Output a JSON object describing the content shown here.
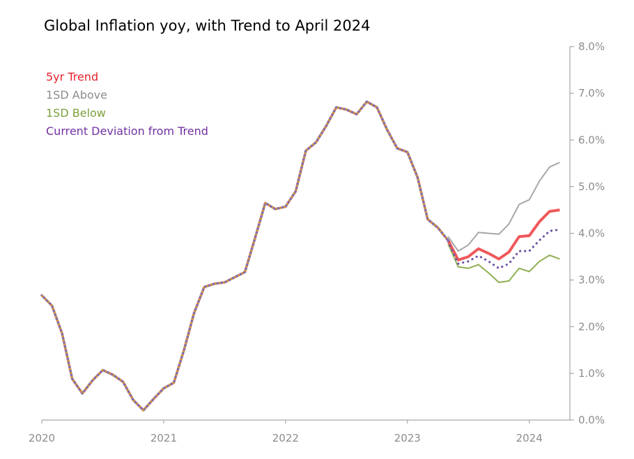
{
  "chart_data": {
    "type": "line",
    "title": "Global Inflation yoy, with Trend to April 2024",
    "xlabel": "",
    "ylabel": "",
    "ylim": [
      0,
      8
    ],
    "y_ticks": [
      0,
      1,
      2,
      3,
      4,
      5,
      6,
      7,
      8
    ],
    "y_tick_labels": [
      "0.0%",
      "1.0%",
      "2.0%",
      "3.0%",
      "4.0%",
      "5.0%",
      "6.0%",
      "7.0%",
      "8.0%"
    ],
    "y_axis_side": "right",
    "x_range": [
      "2020-01",
      "2024-05"
    ],
    "x_ticks": [
      "2020-01",
      "2021-01",
      "2022-01",
      "2023-01",
      "2024-01"
    ],
    "x_tick_labels": [
      "2020",
      "2021",
      "2022",
      "2023",
      "2024"
    ],
    "grid": false,
    "legend_position": "top-left",
    "colors": {
      "inflation_a": "#7f6ab0",
      "inflation_b": "#d4934a",
      "trend": "#f0585a",
      "above": "#a6a6a6",
      "below": "#8fb050",
      "deviation": "#7153a6",
      "axis": "#a6a6a6"
    },
    "inflation": {
      "x": [
        "2020-01",
        "2020-02",
        "2020-03",
        "2020-04",
        "2020-05",
        "2020-06",
        "2020-07",
        "2020-08",
        "2020-09",
        "2020-10",
        "2020-11",
        "2020-12",
        "2021-01",
        "2021-02",
        "2021-03",
        "2021-04",
        "2021-05",
        "2021-06",
        "2021-07",
        "2021-08",
        "2021-09",
        "2021-10",
        "2021-11",
        "2021-12",
        "2022-01",
        "2022-02",
        "2022-03",
        "2022-04",
        "2022-05",
        "2022-06",
        "2022-07",
        "2022-08",
        "2022-09",
        "2022-10",
        "2022-11",
        "2022-12",
        "2023-01",
        "2023-02",
        "2023-03",
        "2023-04",
        "2023-05"
      ],
      "values": [
        2.67,
        2.45,
        1.85,
        0.88,
        0.57,
        0.85,
        1.07,
        0.97,
        0.82,
        0.43,
        0.21,
        0.45,
        0.68,
        0.8,
        1.5,
        2.3,
        2.85,
        2.92,
        2.95,
        3.06,
        3.17,
        3.9,
        4.65,
        4.52,
        4.57,
        4.9,
        5.77,
        5.95,
        6.3,
        6.7,
        6.65,
        6.55,
        6.82,
        6.7,
        6.22,
        5.82,
        5.74,
        5.2,
        4.3,
        4.12,
        3.85
      ]
    },
    "series": [
      {
        "name": "5yr Trend",
        "x": [
          "2023-05",
          "2023-06",
          "2023-07",
          "2023-08",
          "2023-09",
          "2023-10",
          "2023-11",
          "2023-12",
          "2024-01",
          "2024-02",
          "2024-03",
          "2024-04"
        ],
        "values": [
          3.85,
          3.43,
          3.5,
          3.67,
          3.57,
          3.45,
          3.6,
          3.93,
          3.95,
          4.25,
          4.47,
          4.5
        ]
      },
      {
        "name": "1SD Above",
        "x": [
          "2023-05",
          "2023-06",
          "2023-07",
          "2023-08",
          "2023-09",
          "2023-10",
          "2023-11",
          "2023-12",
          "2024-01",
          "2024-02",
          "2024-03",
          "2024-04"
        ],
        "values": [
          3.93,
          3.62,
          3.75,
          4.02,
          4.0,
          3.98,
          4.2,
          4.62,
          4.72,
          5.12,
          5.42,
          5.52
        ]
      },
      {
        "name": "1SD Below",
        "x": [
          "2023-05",
          "2023-06",
          "2023-07",
          "2023-08",
          "2023-09",
          "2023-10",
          "2023-11",
          "2023-12",
          "2024-01",
          "2024-02",
          "2024-03",
          "2024-04"
        ],
        "values": [
          3.78,
          3.28,
          3.25,
          3.33,
          3.15,
          2.95,
          2.98,
          3.25,
          3.18,
          3.4,
          3.53,
          3.45
        ]
      },
      {
        "name": "Current Deviation from Trend",
        "x": [
          "2023-05",
          "2023-06",
          "2023-07",
          "2023-08",
          "2023-09",
          "2023-10",
          "2023-11",
          "2023-12",
          "2024-01",
          "2024-02",
          "2024-03",
          "2024-04"
        ],
        "values": [
          3.83,
          3.35,
          3.4,
          3.52,
          3.4,
          3.25,
          3.35,
          3.62,
          3.62,
          3.85,
          4.05,
          4.08
        ]
      }
    ]
  }
}
